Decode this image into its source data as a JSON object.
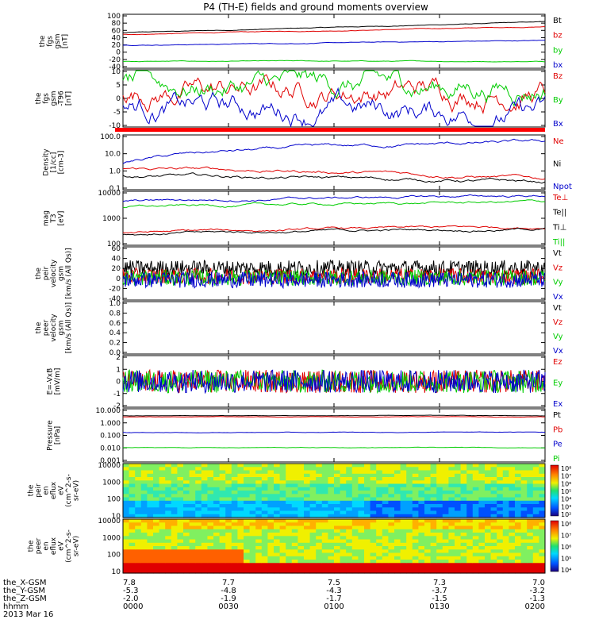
{
  "title": "P4 (TH-E) fields and ground moments overview",
  "date_label": "2013 Mar 16",
  "colors": {
    "black": "#000000",
    "red": "#e00000",
    "green": "#00cc00",
    "blue": "#0000cc",
    "bar_red": "#ff0000"
  },
  "footer": {
    "rows": [
      {
        "label": "the_X-GSM",
        "values": [
          "7.8",
          "7.7",
          "7.5",
          "7.3",
          "7.0"
        ]
      },
      {
        "label": "the_Y-GSM",
        "values": [
          "-5.3",
          "-4.8",
          "-4.3",
          "-3.7",
          "-3.2"
        ]
      },
      {
        "label": "the_Z-GSM",
        "values": [
          "-2.0",
          "-1.9",
          "-1.7",
          "-1.5",
          "-1.3"
        ]
      },
      {
        "label": "hhmm",
        "values": [
          "0000",
          "0030",
          "0100",
          "0130",
          "0200"
        ]
      }
    ]
  },
  "chart_data": [
    {
      "type": "line",
      "panel": "fgs_gsm",
      "ylabel": [
        "the",
        "fgs",
        "gsm",
        "[nT]"
      ],
      "ylim": [
        -40,
        100
      ],
      "yticks": [
        "100",
        "80",
        "60",
        "40",
        "20",
        "0",
        "-20",
        "-40"
      ],
      "x": [
        "0000",
        "0030",
        "0100",
        "0130",
        "0200"
      ],
      "series": [
        {
          "name": "Bt",
          "color": "#000000",
          "start": 52,
          "end": 80
        },
        {
          "name": "bz",
          "color": "#e00000",
          "start": 48,
          "end": 68
        },
        {
          "name": "by",
          "color": "#00cc00",
          "start": -22,
          "end": -22
        },
        {
          "name": "bx",
          "color": "#0000cc",
          "start": 20,
          "end": 32
        }
      ]
    },
    {
      "type": "line",
      "panel": "fgs_gsm_dp",
      "ylabel": [
        "the",
        "fgs",
        "gsm",
        "-T96",
        "[nT]"
      ],
      "ylim": [
        -15,
        10
      ],
      "yticks": [
        "10",
        "5",
        "0",
        "-5",
        "-10"
      ],
      "x": [
        "0000",
        "0030",
        "0100",
        "0130",
        "0200"
      ],
      "series": [
        {
          "name": "Bz",
          "color": "#e00000"
        },
        {
          "name": "By",
          "color": "#00cc00"
        },
        {
          "name": "Bx",
          "color": "#0000cc"
        }
      ]
    },
    {
      "type": "line",
      "panel": "density",
      "yscale": "log",
      "ylabel": [
        "Density",
        "[1/cc]",
        "[cm-3]"
      ],
      "ylim": [
        0.1,
        100
      ],
      "yticks": [
        "100.0",
        "10.0",
        "1.0",
        "0.1"
      ],
      "x": [
        "0000",
        "0030",
        "0100",
        "0130",
        "0200"
      ],
      "series": [
        {
          "name": "Ne",
          "color": "#e00000"
        },
        {
          "name": "Ni",
          "color": "#000000"
        },
        {
          "name": "Npot",
          "color": "#0000cc"
        }
      ]
    },
    {
      "type": "line",
      "panel": "temperature",
      "yscale": "log",
      "ylabel": [
        "mag",
        "T3",
        "[eV]"
      ],
      "ylim": [
        30,
        10000
      ],
      "yticks": [
        "10000",
        "1000",
        "100"
      ],
      "x": [
        "0000",
        "0030",
        "0100",
        "0130",
        "0200"
      ],
      "series": [
        {
          "name": "Te⊥",
          "color": "#e00000"
        },
        {
          "name": "Te||",
          "color": "#000000"
        },
        {
          "name": "Ti⊥",
          "color": "#000000"
        },
        {
          "name": "Ti||",
          "color": "#00cc00"
        }
      ]
    },
    {
      "type": "line",
      "panel": "peir_velocity",
      "ylabel": [
        "the",
        "peir",
        "velocity",
        "gsm",
        "[km/s (All Qs)]"
      ],
      "ylim": [
        -40,
        60
      ],
      "yticks": [
        "60",
        "40",
        "20",
        "0",
        "-20",
        "-40"
      ],
      "x": [
        "0000",
        "0030",
        "0100",
        "0130",
        "0200"
      ],
      "series": [
        {
          "name": "Vt",
          "color": "#000000"
        },
        {
          "name": "Vz",
          "color": "#e00000"
        },
        {
          "name": "Vy",
          "color": "#00cc00"
        },
        {
          "name": "Vx",
          "color": "#0000cc"
        }
      ]
    },
    {
      "type": "line",
      "panel": "peer_velocity",
      "ylabel": [
        "the",
        "peer",
        "velocity",
        "gsm",
        "[km/s (All Qs)]"
      ],
      "ylim": [
        0.0,
        1.0
      ],
      "yticks": [
        "1.0",
        "0.8",
        "0.6",
        "0.4",
        "0.2",
        "0.0"
      ],
      "x": [
        "0000",
        "0030",
        "0100",
        "0130",
        "0200"
      ],
      "series": [
        {
          "name": "Vt",
          "color": "#000000"
        },
        {
          "name": "Vz",
          "color": "#e00000"
        },
        {
          "name": "Vy",
          "color": "#00cc00"
        },
        {
          "name": "Vx",
          "color": "#0000cc"
        }
      ]
    },
    {
      "type": "line",
      "panel": "efield",
      "ylabel": [
        "E=-VxB",
        "[mV/m]"
      ],
      "ylim": [
        -2,
        2
      ],
      "yticks": [
        "2",
        "1",
        "0",
        "-1",
        "-2"
      ],
      "x": [
        "0000",
        "0030",
        "0100",
        "0130",
        "0200"
      ],
      "series": [
        {
          "name": "Ez",
          "color": "#e00000"
        },
        {
          "name": "Ey",
          "color": "#00cc00"
        },
        {
          "name": "Ex",
          "color": "#0000cc"
        }
      ]
    },
    {
      "type": "line",
      "panel": "pressure",
      "yscale": "log",
      "ylabel": [
        "Pressure",
        "[nPa]"
      ],
      "ylim": [
        0.001,
        10
      ],
      "yticks": [
        "10.000",
        "1.000",
        "0.100",
        "0.010",
        "0.001"
      ],
      "x": [
        "0000",
        "0030",
        "0100",
        "0130",
        "0200"
      ],
      "series": [
        {
          "name": "Pt",
          "color": "#000000",
          "level": 3.0
        },
        {
          "name": "Pb",
          "color": "#e00000",
          "level": 2.4
        },
        {
          "name": "Pe",
          "color": "#0000cc",
          "level": 0.17
        },
        {
          "name": "Pi",
          "color": "#00cc00",
          "level": 0.012
        }
      ]
    },
    {
      "type": "heatmap",
      "panel": "peir_en_eflux",
      "yscale": "log",
      "ylabel": [
        "the",
        "peir",
        "en",
        "eflux",
        "eV",
        "(cm^2-s-",
        "sr-eV)"
      ],
      "ylim": [
        10,
        20000
      ],
      "yticks": [
        "10000",
        "1000",
        "100",
        "10"
      ],
      "colorbar_ticks": [
        "10⁸",
        "10⁷",
        "10⁶",
        "10⁵",
        "10⁴",
        "10³",
        "10²"
      ],
      "x": [
        "0000",
        "0030",
        "0100",
        "0130",
        "0200"
      ]
    },
    {
      "type": "heatmap",
      "panel": "peer_en_eflux",
      "yscale": "log",
      "ylabel": [
        "the",
        "peer",
        "en",
        "eflux",
        "eV",
        "(cm^2-s-",
        "sr-eV)"
      ],
      "ylim": [
        10,
        20000
      ],
      "yticks": [
        "10000",
        "1000",
        "100",
        "10"
      ],
      "colorbar_ticks": [
        "10⁸",
        "10⁷",
        "10⁶",
        "10⁵",
        "10⁴"
      ],
      "x": [
        "0000",
        "0030",
        "0100",
        "0130",
        "0200"
      ]
    }
  ]
}
